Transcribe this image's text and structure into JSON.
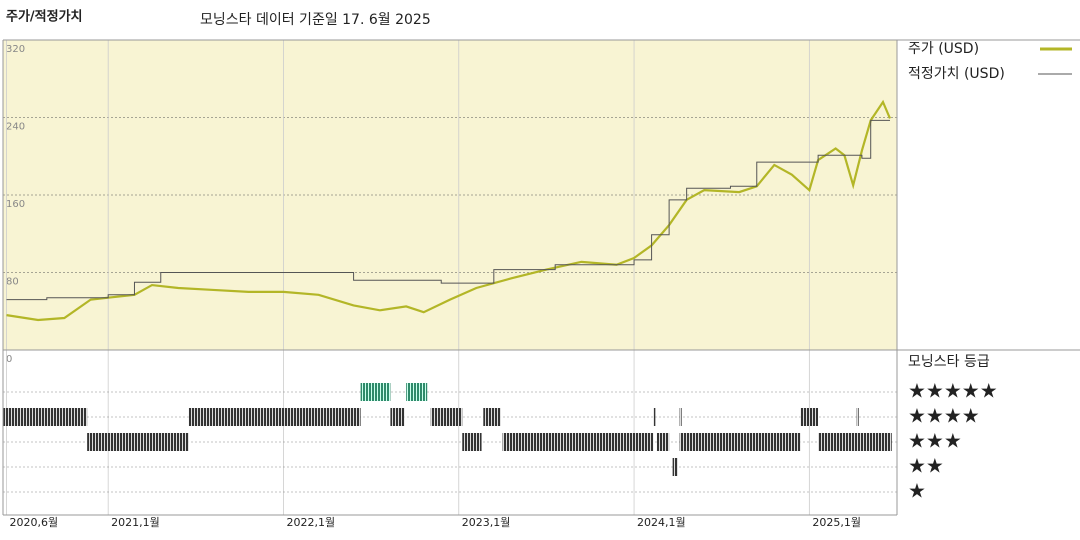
{
  "chart_data": {
    "type": "line",
    "title": "주가/적정가치",
    "subtitle": "모닝스타 데이터 기준일 17. 6월 2025",
    "xlim": [
      2020.4,
      2025.5
    ],
    "xticks": [
      {
        "value": 2020.42,
        "label": "2020,6월"
      },
      {
        "value": 2021.0,
        "label": "2021,1월"
      },
      {
        "value": 2022.0,
        "label": "2022,1월"
      },
      {
        "value": 2023.0,
        "label": "2023,1월"
      },
      {
        "value": 2024.0,
        "label": "2024,1월"
      },
      {
        "value": 2025.0,
        "label": "2025,1월"
      }
    ],
    "ylim": [
      0,
      320
    ],
    "yticks": [
      0,
      80,
      160,
      240,
      320
    ],
    "grid": true,
    "series": [
      {
        "name": "주가 (USD)",
        "color": "#b3b627",
        "x": [
          2020.42,
          2020.6,
          2020.75,
          2020.9,
          2021.0,
          2021.15,
          2021.25,
          2021.4,
          2021.6,
          2021.8,
          2022.0,
          2022.2,
          2022.4,
          2022.55,
          2022.7,
          2022.8,
          2022.95,
          2023.1,
          2023.3,
          2023.5,
          2023.7,
          2023.9,
          2024.0,
          2024.1,
          2024.2,
          2024.3,
          2024.4,
          2024.6,
          2024.7,
          2024.8,
          2024.9,
          2025.0,
          2025.05,
          2025.15,
          2025.2,
          2025.25,
          2025.3,
          2025.35,
          2025.42,
          2025.46
        ],
        "values": [
          36,
          31,
          33,
          52,
          54,
          57,
          67,
          64,
          62,
          60,
          60,
          57,
          46,
          41,
          45,
          39,
          52,
          64,
          74,
          83,
          91,
          88,
          95,
          108,
          129,
          155,
          165,
          163,
          169,
          191,
          181,
          165,
          196,
          208,
          201,
          170,
          206,
          237,
          256,
          239
        ]
      },
      {
        "name": "적정가치 (USD)",
        "color": "#555555",
        "step": "after",
        "x": [
          2020.42,
          2020.65,
          2021.0,
          2021.15,
          2021.3,
          2022.4,
          2022.9,
          2023.2,
          2023.55,
          2024.0,
          2024.1,
          2024.2,
          2024.3,
          2024.55,
          2024.7,
          2025.05,
          2025.3,
          2025.35,
          2025.46
        ],
        "values": [
          52,
          54,
          57,
          70,
          80,
          72,
          69,
          83,
          88,
          93,
          119,
          155,
          167,
          169,
          194,
          201,
          198,
          237,
          237
        ]
      }
    ],
    "rating": {
      "title": "모닝스타 등급",
      "levels": [
        5,
        4,
        3,
        2,
        1
      ],
      "level_labels": [
        "★★★★★",
        "★★★★",
        "★★★",
        "★★",
        "★"
      ],
      "colors": {
        "5": "#2f8a6a",
        "other": "#333333"
      },
      "periods": [
        {
          "start": 2020.4,
          "end": 2020.88,
          "rating": 4
        },
        {
          "start": 2021.46,
          "end": 2022.44,
          "rating": 4
        },
        {
          "start": 2022.61,
          "end": 2022.69,
          "rating": 4
        },
        {
          "start": 2022.84,
          "end": 2023.02,
          "rating": 4
        },
        {
          "start": 2023.14,
          "end": 2023.24,
          "rating": 4
        },
        {
          "start": 2024.11,
          "end": 2024.12,
          "rating": 4
        },
        {
          "start": 2024.26,
          "end": 2024.265,
          "rating": 4
        },
        {
          "start": 2024.95,
          "end": 2025.05,
          "rating": 4
        },
        {
          "start": 2025.27,
          "end": 2025.28,
          "rating": 4
        },
        {
          "start": 2020.88,
          "end": 2021.46,
          "rating": 3
        },
        {
          "start": 2023.02,
          "end": 2023.13,
          "rating": 3
        },
        {
          "start": 2023.25,
          "end": 2024.11,
          "rating": 3
        },
        {
          "start": 2024.13,
          "end": 2024.2,
          "rating": 3
        },
        {
          "start": 2024.26,
          "end": 2024.95,
          "rating": 3
        },
        {
          "start": 2025.05,
          "end": 2025.47,
          "rating": 3
        },
        {
          "start": 2022.44,
          "end": 2022.61,
          "rating": 5
        },
        {
          "start": 2022.7,
          "end": 2022.82,
          "rating": 5
        },
        {
          "start": 2024.22,
          "end": 2024.25,
          "rating": 2
        }
      ]
    }
  }
}
